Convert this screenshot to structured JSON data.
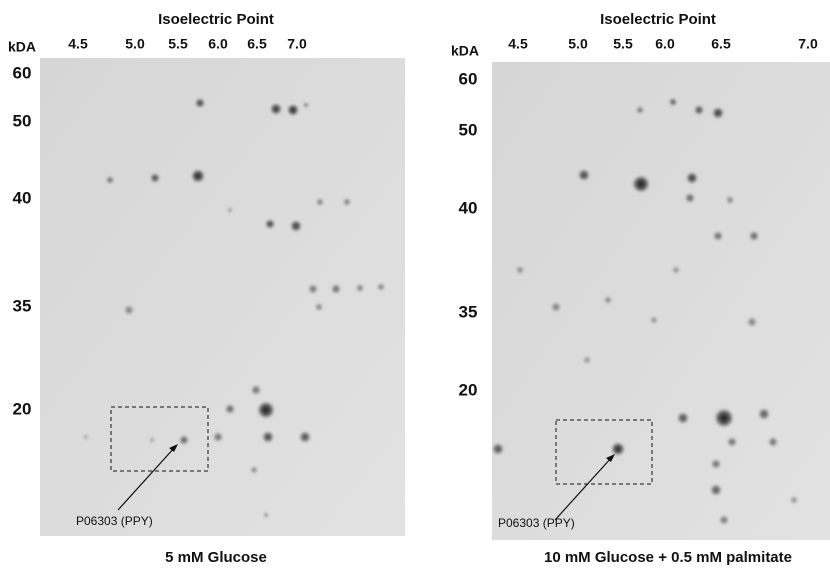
{
  "panels": [
    {
      "x_axis_title": "Isoelectric Point",
      "x_ticks": [
        "4.5",
        "5.0",
        "5.5",
        "6.0",
        "6.5",
        "7.0"
      ],
      "y_axis_title": "kDA",
      "y_ticks": [
        "60",
        "50",
        "40",
        "35",
        "20"
      ],
      "annotation": "P06303 (PPY)",
      "caption": "5 mM Glucose"
    },
    {
      "x_axis_title": "Isoelectric Point",
      "x_ticks": [
        "4.5",
        "5.0",
        "5.5",
        "6.0",
        "6.5",
        "7.0"
      ],
      "y_axis_title": "kDA",
      "y_ticks": [
        "60",
        "50",
        "40",
        "35",
        "20"
      ],
      "annotation": "P06303 (PPY)",
      "caption": "10 mM Glucose + 0.5 mM palmitate"
    }
  ]
}
